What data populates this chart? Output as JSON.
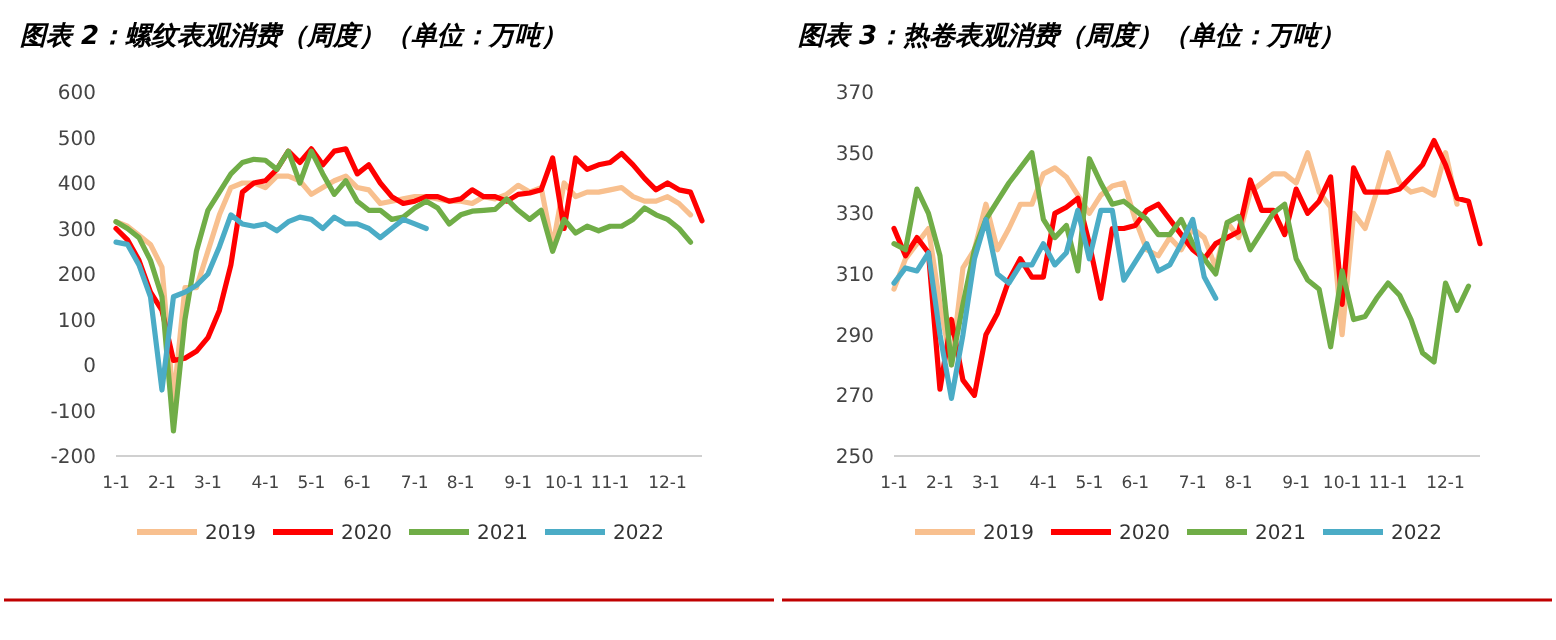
{
  "chart_data": [
    {
      "type": "line",
      "title": "图表 2：螺纹表观消费（周度）（单位：万吨）",
      "categories": [
        "1-1",
        null,
        null,
        null,
        "2-1",
        null,
        null,
        null,
        "3-1",
        null,
        null,
        null,
        null,
        "4-1",
        null,
        null,
        null,
        "5-1",
        null,
        null,
        null,
        "6-1",
        null,
        null,
        null,
        null,
        "7-1",
        null,
        null,
        null,
        "8-1",
        null,
        null,
        null,
        null,
        "9-1",
        null,
        null,
        null,
        "10-1",
        null,
        null,
        null,
        "11-1",
        null,
        null,
        null,
        null,
        "12-1",
        null,
        null,
        null
      ],
      "ylim": [
        -200,
        600
      ],
      "yticks": [
        -200,
        -100,
        0,
        100,
        200,
        300,
        400,
        500,
        600
      ],
      "grid": false,
      "legend": "bottom",
      "marker": "none",
      "line_style": "solid",
      "series": [
        {
          "name": "2019",
          "color": "#f8c08f",
          "values": [
            315,
            305,
            285,
            265,
            215,
            -80,
            170,
            170,
            250,
            330,
            390,
            400,
            400,
            390,
            415,
            415,
            405,
            375,
            390,
            405,
            415,
            390,
            385,
            355,
            360,
            365,
            370,
            370,
            365,
            360,
            360,
            355,
            370,
            365,
            375,
            395,
            380,
            390,
            260,
            400,
            370,
            380,
            380,
            385,
            390,
            370,
            360,
            360,
            370,
            355,
            330,
            null
          ]
        },
        {
          "name": "2020",
          "color": "#ff0000",
          "values": [
            300,
            275,
            230,
            160,
            120,
            10,
            15,
            30,
            60,
            120,
            220,
            380,
            400,
            405,
            430,
            470,
            445,
            475,
            440,
            470,
            475,
            420,
            440,
            400,
            370,
            355,
            360,
            370,
            370,
            360,
            365,
            385,
            370,
            370,
            360,
            375,
            378,
            385,
            455,
            300,
            455,
            430,
            440,
            445,
            465,
            440,
            410,
            385,
            400,
            385,
            380,
            317
          ]
        },
        {
          "name": "2021",
          "color": "#70ad47",
          "values": [
            315,
            300,
            280,
            230,
            150,
            -145,
            100,
            250,
            340,
            380,
            420,
            445,
            452,
            450,
            430,
            470,
            400,
            470,
            420,
            375,
            405,
            360,
            340,
            340,
            320,
            325,
            345,
            360,
            345,
            310,
            330,
            338,
            340,
            342,
            365,
            340,
            320,
            340,
            250,
            320,
            290,
            305,
            295,
            305,
            305,
            320,
            345,
            330,
            320,
            300,
            270,
            null
          ]
        },
        {
          "name": "2022",
          "color": "#4bacc6",
          "values": [
            270,
            265,
            220,
            150,
            -55,
            150,
            160,
            175,
            200,
            260,
            330,
            310,
            305,
            310,
            295,
            315,
            325,
            320,
            300,
            325,
            310,
            310,
            300,
            280,
            300,
            320,
            310,
            300,
            null,
            null,
            null,
            null,
            null,
            null,
            null,
            null,
            null,
            null,
            null,
            null,
            null,
            null,
            null,
            null,
            null,
            null,
            null,
            null,
            null,
            null,
            null,
            null
          ]
        }
      ]
    },
    {
      "type": "line",
      "title": "图表 3：热卷表观消费（周度）（单位：万吨）",
      "categories": [
        "1-1",
        null,
        null,
        null,
        "2-1",
        null,
        null,
        null,
        "3-1",
        null,
        null,
        null,
        null,
        "4-1",
        null,
        null,
        null,
        "5-1",
        null,
        null,
        null,
        "6-1",
        null,
        null,
        null,
        null,
        "7-1",
        null,
        null,
        null,
        "8-1",
        null,
        null,
        null,
        null,
        "9-1",
        null,
        null,
        null,
        "10-1",
        null,
        null,
        null,
        "11-1",
        null,
        null,
        null,
        null,
        "12-1",
        null,
        null,
        null
      ],
      "ylim": [
        250,
        370
      ],
      "yticks": [
        250,
        270,
        290,
        310,
        330,
        350,
        370
      ],
      "grid": false,
      "legend": "bottom",
      "marker": "none",
      "line_style": "solid",
      "series": [
        {
          "name": "2019",
          "color": "#f8c08f",
          "values": [
            305,
            315,
            320,
            325,
            300,
            280,
            312,
            318,
            333,
            318,
            325,
            333,
            333,
            343,
            345,
            342,
            336,
            330,
            336,
            339,
            340,
            328,
            318,
            316,
            322,
            318,
            325,
            322,
            312,
            327,
            322,
            337,
            340,
            343,
            343,
            340,
            350,
            337,
            332,
            290,
            330,
            325,
            337,
            350,
            340,
            337,
            338,
            336,
            350,
            333,
            null,
            null
          ]
        },
        {
          "name": "2020",
          "color": "#ff0000",
          "values": [
            325,
            316,
            322,
            317,
            272,
            295,
            275,
            270,
            290,
            297,
            308,
            315,
            309,
            309,
            330,
            332,
            335,
            320,
            302,
            325,
            325,
            326,
            331,
            333,
            328,
            323,
            318,
            315,
            320,
            322,
            324,
            341,
            331,
            331,
            323,
            338,
            330,
            334,
            342,
            300,
            345,
            337,
            337,
            337,
            338,
            342,
            346,
            354,
            346,
            335,
            334,
            320
          ]
        },
        {
          "name": "2021",
          "color": "#70ad47",
          "values": [
            320,
            318,
            338,
            330,
            316,
            280,
            300,
            318,
            328,
            334,
            340,
            345,
            350,
            328,
            322,
            326,
            311,
            348,
            340,
            333,
            334,
            331,
            328,
            323,
            323,
            328,
            320,
            315,
            310,
            327,
            329,
            318,
            324,
            330,
            333,
            315,
            308,
            305,
            286,
            311,
            295,
            296,
            302,
            307,
            303,
            295,
            284,
            281,
            307,
            298,
            306,
            null
          ]
        },
        {
          "name": "2022",
          "color": "#4bacc6",
          "values": [
            307,
            312,
            311,
            317,
            290,
            269,
            290,
            315,
            328,
            310,
            307,
            313,
            313,
            320,
            313,
            317,
            331,
            315,
            331,
            331,
            308,
            314,
            320,
            311,
            313,
            320,
            328,
            309,
            302,
            null,
            null,
            null,
            null,
            null,
            null,
            null,
            null,
            null,
            null,
            null,
            null,
            null,
            null,
            null,
            null,
            null,
            null,
            null,
            null,
            null,
            null,
            null
          ]
        }
      ]
    }
  ]
}
